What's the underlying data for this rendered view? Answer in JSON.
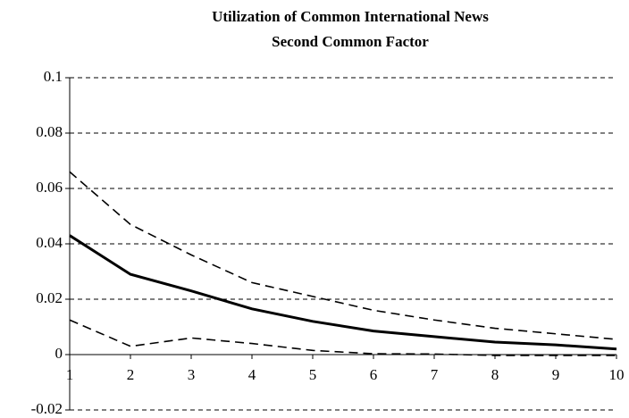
{
  "chart_data": {
    "type": "line",
    "title": [
      "Utilization of Common International News",
      "Second Common Factor"
    ],
    "x": [
      1,
      2,
      3,
      4,
      5,
      6,
      7,
      8,
      9,
      10
    ],
    "xlim": [
      1,
      10
    ],
    "xticks": [
      1,
      2,
      3,
      4,
      5,
      6,
      7,
      8,
      9,
      10
    ],
    "ylim": [
      -0.02,
      0.1
    ],
    "yticks": [
      -0.02,
      0,
      0.02,
      0.04,
      0.06,
      0.08,
      0.1
    ],
    "grid": true,
    "series": [
      {
        "color": "#000000",
        "dash": false,
        "values": [
          0.043,
          0.029,
          0.023,
          0.0165,
          0.012,
          0.0085,
          0.0065,
          0.0045,
          0.0035,
          0.002
        ]
      },
      {
        "color": "#000000",
        "dash": true,
        "values": [
          0.066,
          0.047,
          0.036,
          0.026,
          0.021,
          0.016,
          0.0125,
          0.0095,
          0.0075,
          0.0055
        ]
      },
      {
        "color": "#000000",
        "dash": true,
        "values": [
          0.0125,
          0.003,
          0.006,
          0.004,
          0.0015,
          0.0003,
          0.0002,
          -0.0003,
          -0.0003,
          -0.0003
        ]
      }
    ]
  }
}
